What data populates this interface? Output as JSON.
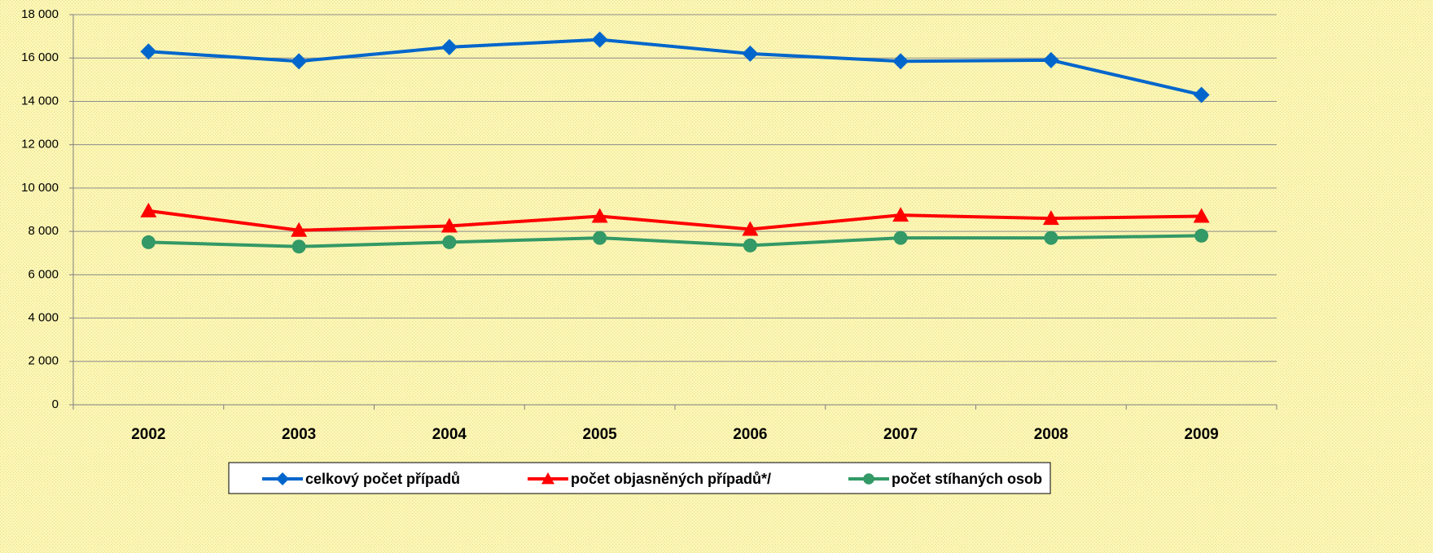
{
  "chart_data": {
    "type": "line",
    "categories": [
      "2002",
      "2003",
      "2004",
      "2005",
      "2006",
      "2007",
      "2008",
      "2009"
    ],
    "series": [
      {
        "name": "celkový počet případů",
        "color": "#0066cc",
        "marker": "diamond",
        "values": [
          16300,
          15850,
          16500,
          16850,
          16200,
          15850,
          15900,
          14300
        ]
      },
      {
        "name": "počet objasněných případů*/",
        "color": "#ff0000",
        "marker": "triangle",
        "values": [
          8950,
          8050,
          8250,
          8700,
          8100,
          8750,
          8600,
          8700
        ]
      },
      {
        "name": "počet stíhaných osob",
        "color": "#339966",
        "marker": "circle",
        "values": [
          7500,
          7300,
          7500,
          7700,
          7350,
          7700,
          7700,
          7800
        ]
      }
    ],
    "ylim": [
      0,
      18000
    ],
    "yticks": [
      0,
      {
        "value": 2000,
        "label": "2 000"
      },
      {
        "value": 4000,
        "label": "4 000"
      },
      {
        "value": 6000,
        "label": "6 000"
      },
      {
        "value": 8000,
        "label": "8 000"
      },
      {
        "value": 10000,
        "label": "10 000"
      },
      {
        "value": 12000,
        "label": "12 000"
      },
      {
        "value": 14000,
        "label": "14 000"
      },
      {
        "value": 16000,
        "label": "16 000"
      },
      {
        "value": 18000,
        "label": "18 000"
      }
    ],
    "grid": true,
    "legend": "bottom"
  }
}
